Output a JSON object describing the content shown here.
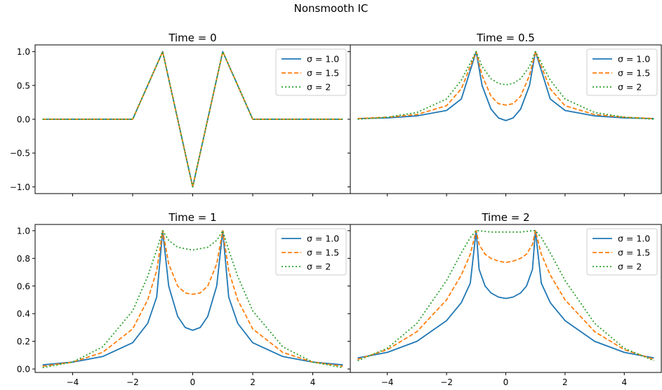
{
  "suptitle": "Nonsmooth IC",
  "legend_labels": [
    "σ = 1.0",
    "σ = 1.5",
    "σ = 2"
  ],
  "x_tick_labels": [
    "−4",
    "−2",
    "0",
    "2",
    "4"
  ],
  "colors": {
    "s1": "#1f77b4",
    "s15": "#ff7f0e",
    "s2": "#2ca02c"
  },
  "chart_data": [
    {
      "type": "line",
      "title": "Time = 0",
      "xlim": [
        -5.25,
        5.25
      ],
      "ylim": [
        -1.1,
        1.1
      ],
      "yticks": [
        1.0,
        0.5,
        0.0,
        -0.5,
        -1.0
      ],
      "ytick_labels": [
        "1.0",
        "0.5",
        "0.0",
        "−0.5",
        "−1.0"
      ],
      "legend": "top-right",
      "series": [
        {
          "name": "σ = 1.0",
          "x": [
            -5,
            -2,
            -1,
            0,
            1,
            2,
            5
          ],
          "y": [
            0,
            0,
            1,
            -1,
            1,
            0,
            0
          ]
        },
        {
          "name": "σ = 1.5",
          "x": [
            -5,
            -2,
            -1,
            0,
            1,
            2,
            5
          ],
          "y": [
            0,
            0,
            1,
            -1,
            1,
            0,
            0
          ]
        },
        {
          "name": "σ = 2",
          "x": [
            -5,
            -2,
            -1,
            0,
            1,
            2,
            5
          ],
          "y": [
            0,
            0,
            1,
            -1,
            1,
            0,
            0
          ]
        }
      ]
    },
    {
      "type": "line",
      "title": "Time = 0.5",
      "xlim": [
        -5.25,
        5.25
      ],
      "ylim": [
        -1.1,
        1.1
      ],
      "yticks": [
        1.0,
        0.5,
        0.0,
        -0.5,
        -1.0
      ],
      "ytick_labels": [],
      "legend": "top-right",
      "series": [
        {
          "name": "σ = 1.0",
          "x": [
            -5,
            -4,
            -3,
            -2,
            -1.5,
            -1,
            -0.8,
            -0.5,
            -0.25,
            0,
            0.25,
            0.5,
            0.8,
            1,
            1.5,
            2,
            3,
            4,
            5
          ],
          "y": [
            0.01,
            0.02,
            0.05,
            0.13,
            0.3,
            1.0,
            0.5,
            0.15,
            0.02,
            -0.02,
            0.02,
            0.15,
            0.5,
            1.0,
            0.3,
            0.13,
            0.05,
            0.02,
            0.01
          ]
        },
        {
          "name": "σ = 1.5",
          "x": [
            -5,
            -4,
            -3,
            -2,
            -1.5,
            -1,
            -0.8,
            -0.5,
            -0.25,
            0,
            0.25,
            0.5,
            0.8,
            1,
            1.5,
            2,
            3,
            4,
            5
          ],
          "y": [
            0.01,
            0.03,
            0.07,
            0.2,
            0.45,
            1.0,
            0.65,
            0.34,
            0.23,
            0.21,
            0.23,
            0.34,
            0.65,
            1.0,
            0.45,
            0.2,
            0.07,
            0.03,
            0.01
          ]
        },
        {
          "name": "σ = 2",
          "x": [
            -5,
            -4,
            -3,
            -2,
            -1.5,
            -1,
            -0.8,
            -0.5,
            -0.25,
            0,
            0.25,
            0.5,
            0.8,
            1,
            1.5,
            2,
            3,
            4,
            5
          ],
          "y": [
            0.0,
            0.03,
            0.1,
            0.3,
            0.58,
            1.0,
            0.78,
            0.6,
            0.53,
            0.51,
            0.53,
            0.6,
            0.78,
            1.0,
            0.58,
            0.3,
            0.1,
            0.03,
            0.0
          ]
        }
      ]
    },
    {
      "type": "line",
      "title": "Time = 1",
      "xlim": [
        -5.25,
        5.25
      ],
      "ylim": [
        -0.025,
        1.045
      ],
      "yticks": [
        0.0,
        0.2,
        0.4,
        0.6,
        0.8,
        1.0
      ],
      "ytick_labels": [
        "0.0",
        "0.2",
        "0.4",
        "0.6",
        "0.8",
        "1.0"
      ],
      "legend": "top-right",
      "series": [
        {
          "name": "σ = 1.0",
          "x": [
            -5,
            -4,
            -3,
            -2,
            -1.5,
            -1.2,
            -1,
            -0.8,
            -0.5,
            -0.25,
            0,
            0.25,
            0.5,
            0.8,
            1,
            1.2,
            1.5,
            2,
            3,
            4,
            5
          ],
          "y": [
            0.03,
            0.05,
            0.09,
            0.19,
            0.33,
            0.52,
            1.0,
            0.6,
            0.38,
            0.3,
            0.28,
            0.3,
            0.38,
            0.6,
            1.0,
            0.52,
            0.33,
            0.19,
            0.09,
            0.05,
            0.03
          ]
        },
        {
          "name": "σ = 1.5",
          "x": [
            -5,
            -4,
            -3,
            -2,
            -1.5,
            -1.2,
            -1,
            -0.8,
            -0.5,
            -0.25,
            0,
            0.25,
            0.5,
            0.8,
            1,
            1.2,
            1.5,
            2,
            3,
            4,
            5
          ],
          "y": [
            0.02,
            0.05,
            0.12,
            0.29,
            0.5,
            0.71,
            1.0,
            0.76,
            0.6,
            0.55,
            0.54,
            0.55,
            0.6,
            0.76,
            1.0,
            0.71,
            0.5,
            0.29,
            0.12,
            0.05,
            0.02
          ]
        },
        {
          "name": "σ = 2",
          "x": [
            -5,
            -4,
            -3,
            -2,
            -1.5,
            -1.2,
            -1,
            -0.8,
            -0.5,
            -0.25,
            0,
            0.25,
            0.5,
            0.8,
            1,
            1.2,
            1.5,
            2,
            3,
            4,
            5
          ],
          "y": [
            0.01,
            0.05,
            0.16,
            0.42,
            0.67,
            0.86,
            1.0,
            0.93,
            0.88,
            0.87,
            0.86,
            0.87,
            0.88,
            0.93,
            1.0,
            0.86,
            0.67,
            0.42,
            0.16,
            0.05,
            0.01
          ]
        }
      ]
    },
    {
      "type": "line",
      "title": "Time = 2",
      "xlim": [
        -5.25,
        5.25
      ],
      "ylim": [
        -0.025,
        1.045
      ],
      "yticks": [
        0.0,
        0.2,
        0.4,
        0.6,
        0.8,
        1.0
      ],
      "ytick_labels": [],
      "legend": "top-right",
      "series": [
        {
          "name": "σ = 1.0",
          "x": [
            -5,
            -4,
            -3,
            -2,
            -1.5,
            -1.2,
            -1,
            -0.9,
            -0.7,
            -0.5,
            -0.25,
            0,
            0.25,
            0.5,
            0.7,
            0.9,
            1,
            1.2,
            1.5,
            2,
            3,
            4,
            5
          ],
          "y": [
            0.08,
            0.12,
            0.2,
            0.35,
            0.48,
            0.62,
            1.0,
            0.72,
            0.6,
            0.55,
            0.52,
            0.51,
            0.52,
            0.55,
            0.6,
            0.72,
            1.0,
            0.62,
            0.48,
            0.35,
            0.2,
            0.12,
            0.08
          ]
        },
        {
          "name": "σ = 1.5",
          "x": [
            -5,
            -4,
            -3,
            -2,
            -1.5,
            -1.2,
            -1,
            -0.9,
            -0.7,
            -0.5,
            -0.25,
            0,
            0.25,
            0.5,
            0.7,
            0.9,
            1,
            1.2,
            1.5,
            2,
            3,
            4,
            5
          ],
          "y": [
            0.07,
            0.14,
            0.27,
            0.5,
            0.68,
            0.83,
            1.0,
            0.9,
            0.83,
            0.8,
            0.78,
            0.77,
            0.78,
            0.8,
            0.83,
            0.9,
            1.0,
            0.83,
            0.68,
            0.5,
            0.27,
            0.14,
            0.07
          ]
        },
        {
          "name": "σ = 2",
          "x": [
            -5,
            -4,
            -3,
            -2,
            -1.5,
            -1.2,
            -1,
            -0.9,
            -0.7,
            -0.5,
            -0.25,
            0,
            0.25,
            0.5,
            0.7,
            0.9,
            1,
            1.2,
            1.5,
            2,
            3,
            4,
            5
          ],
          "y": [
            0.06,
            0.15,
            0.33,
            0.64,
            0.84,
            0.95,
            1.0,
            1.0,
            0.995,
            0.99,
            0.99,
            0.99,
            0.99,
            0.99,
            0.995,
            1.0,
            1.0,
            0.95,
            0.84,
            0.64,
            0.33,
            0.15,
            0.06
          ]
        }
      ]
    }
  ]
}
